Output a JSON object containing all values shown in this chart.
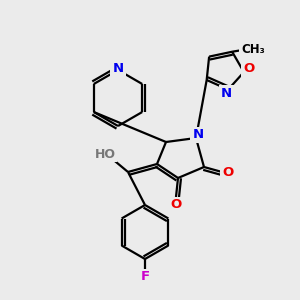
{
  "bg_color": "#ebebeb",
  "bond_color": "#000000",
  "atom_colors": {
    "N": "#0000ee",
    "O": "#ee0000",
    "F": "#cc00cc",
    "C": "#000000"
  },
  "lw": 1.6
}
